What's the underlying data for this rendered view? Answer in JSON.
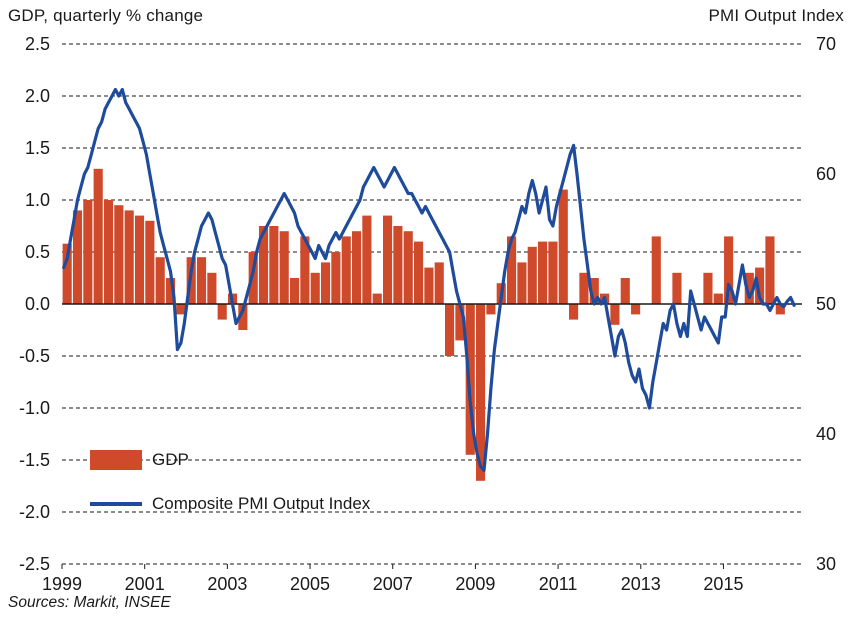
{
  "footer": {
    "sources": "Sources: Markit, INSEE"
  },
  "colors": {
    "bar": "#CE4A2B",
    "line": "#1E4B9B",
    "grid": "#1a1a1a",
    "zero_line": "#1a1a1a",
    "text": "#1a1a1a"
  },
  "chart_data": {
    "type": "combo",
    "subtype": [
      "bar",
      "line"
    ],
    "grid": {
      "horizontal": "dashed",
      "vertical": "off"
    },
    "legend_position": "inside-bottom-left",
    "x_axis": {
      "start_year": 1999,
      "end_year": 2016.9,
      "tick_years": [
        1999,
        2001,
        2003,
        2005,
        2007,
        2009,
        2011,
        2013,
        2015
      ],
      "tick_labels": [
        "1999",
        "2001",
        "2003",
        "2005",
        "2007",
        "2009",
        "2011",
        "2013",
        "2015"
      ]
    },
    "left_axis": {
      "title": "GDP, quarterly % change",
      "min": -2.5,
      "max": 2.5,
      "step": 0.5,
      "tick_labels": [
        "2.5",
        "2.0",
        "1.5",
        "1.0",
        "0.5",
        "0.0",
        "-0.5",
        "-1.0",
        "-1.5",
        "-2.0",
        "-2.5"
      ]
    },
    "right_axis": {
      "title": "PMI Output Index",
      "min": 30,
      "max": 70,
      "tick_values": [
        70,
        60,
        50,
        40,
        30
      ],
      "tick_labels": [
        "70",
        "60",
        "50",
        "40",
        "30"
      ]
    },
    "series": [
      {
        "name": "GDP",
        "type": "bar",
        "axis": "left",
        "frequency": "quarterly",
        "start_year": 1999,
        "color": "#CE4A2B",
        "values": [
          0.58,
          0.9,
          1.0,
          1.3,
          1.0,
          0.95,
          0.9,
          0.85,
          0.8,
          0.45,
          0.25,
          -0.1,
          0.45,
          0.45,
          0.3,
          -0.15,
          0.1,
          -0.25,
          0.5,
          0.75,
          0.75,
          0.7,
          0.25,
          0.65,
          0.3,
          0.4,
          0.5,
          0.65,
          0.7,
          0.85,
          0.1,
          0.85,
          0.75,
          0.7,
          0.6,
          0.35,
          0.4,
          -0.5,
          -0.35,
          -1.45,
          -1.7,
          -0.1,
          0.2,
          0.65,
          0.4,
          0.55,
          0.6,
          0.6,
          1.1,
          -0.15,
          0.3,
          0.25,
          0.1,
          -0.2,
          0.25,
          -0.1,
          0.0,
          0.65,
          0.0,
          0.3,
          0.0,
          0.0,
          0.3,
          0.1,
          0.65,
          0.0,
          0.3,
          0.35,
          0.65,
          -0.1
        ]
      },
      {
        "name": "Composite PMI Output Index",
        "type": "line",
        "axis": "right",
        "frequency": "monthly",
        "start_year": 1999,
        "color": "#1E4B9B",
        "values": [
          52.8,
          53.5,
          55.0,
          56.5,
          58.0,
          59.0,
          60.0,
          60.5,
          61.5,
          62.5,
          63.5,
          64.0,
          65.0,
          65.5,
          66.0,
          66.5,
          66.0,
          66.5,
          65.5,
          65.0,
          64.5,
          64.0,
          63.5,
          62.5,
          61.5,
          60.0,
          58.5,
          57.0,
          55.5,
          54.5,
          53.5,
          52.5,
          50.5,
          46.5,
          47.0,
          48.5,
          50.5,
          52.5,
          54.0,
          55.0,
          56.0,
          56.5,
          57.0,
          56.5,
          55.5,
          54.5,
          53.5,
          53.0,
          51.5,
          50.0,
          48.5,
          49.0,
          49.5,
          50.5,
          51.5,
          52.5,
          54.0,
          55.0,
          55.5,
          56.0,
          56.5,
          57.0,
          57.5,
          58.0,
          58.5,
          58.0,
          57.5,
          57.0,
          56.0,
          55.5,
          55.0,
          54.5,
          54.0,
          53.5,
          54.5,
          54.0,
          53.5,
          54.5,
          55.0,
          55.5,
          55.0,
          55.5,
          56.0,
          56.5,
          57.0,
          57.5,
          58.0,
          59.0,
          59.5,
          60.0,
          60.5,
          60.0,
          59.5,
          59.0,
          59.5,
          60.0,
          60.5,
          60.0,
          59.5,
          59.0,
          58.5,
          58.5,
          58.0,
          57.5,
          57.0,
          57.5,
          57.0,
          56.5,
          56.0,
          55.5,
          55.0,
          54.5,
          54.0,
          52.5,
          51.0,
          50.0,
          49.0,
          46.0,
          42.5,
          40.0,
          38.5,
          37.5,
          37.2,
          40.0,
          43.5,
          46.5,
          48.5,
          50.5,
          52.5,
          54.0,
          55.0,
          55.5,
          56.5,
          57.5,
          57.0,
          58.5,
          59.5,
          58.5,
          57.0,
          58.0,
          59.0,
          56.5,
          56.0,
          57.5,
          58.5,
          59.5,
          60.5,
          61.5,
          62.2,
          60.0,
          57.5,
          55.0,
          53.0,
          51.0,
          50.0,
          50.5,
          50.0,
          50.5,
          49.0,
          47.5,
          46.0,
          47.5,
          48.0,
          47.0,
          45.5,
          44.5,
          44.0,
          45.0,
          43.5,
          43.0,
          42.0,
          44.0,
          45.5,
          47.0,
          48.5,
          48.0,
          49.5,
          50.0,
          48.5,
          47.5,
          48.5,
          47.5,
          51.0,
          50.0,
          49.0,
          48.0,
          49.0,
          48.5,
          48.0,
          47.5,
          47.0,
          49.0,
          49.0,
          51.5,
          51.0,
          50.0,
          51.5,
          53.0,
          51.5,
          50.5,
          51.0,
          52.0,
          50.5,
          50.0,
          50.0,
          49.5,
          50.0,
          50.5,
          50.0,
          49.8,
          50.2,
          50.5,
          49.9
        ]
      }
    ]
  }
}
